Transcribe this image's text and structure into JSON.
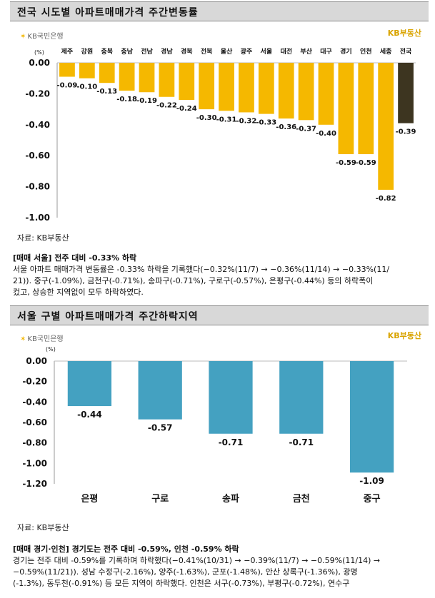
{
  "section1": {
    "title": "전국 시도별 아파트매매가격 주간변동률"
  },
  "logo": {
    "left": "KB국민은행",
    "right": "KB부동산"
  },
  "chart_data": [
    {
      "type": "bar",
      "unit_label": "(%)",
      "categories": [
        "제주",
        "강원",
        "충북",
        "충남",
        "전남",
        "경남",
        "경북",
        "전북",
        "울산",
        "광주",
        "서울",
        "대전",
        "부산",
        "대구",
        "경기",
        "인천",
        "세종",
        "전국"
      ],
      "values": [
        -0.09,
        -0.1,
        -0.13,
        -0.18,
        -0.19,
        -0.22,
        -0.24,
        -0.3,
        -0.31,
        -0.32,
        -0.33,
        -0.36,
        -0.37,
        -0.4,
        -0.59,
        -0.59,
        -0.82,
        -0.39
      ],
      "value_labels": [
        "-0.09",
        "-0.10",
        "-0.13",
        "-0.18",
        "-0.19",
        "-0.22",
        "-0.24",
        "-0.30",
        "-0.31",
        "-0.32",
        "-0.33",
        "-0.36",
        "-0.37",
        "-0.40",
        "-0.59",
        "-0.59",
        "-0.82",
        "-0.39"
      ],
      "y_ticks": [
        "0.00",
        "-0.20",
        "-0.40",
        "-0.60",
        "-0.80",
        "-1.00"
      ],
      "ylim": [
        -1.0,
        0
      ],
      "colors": {
        "bar": "#f5b800",
        "highlight": "#3d3520",
        "highlight_category": "전국"
      },
      "grid": false
    },
    {
      "type": "bar",
      "unit_label": "(%)",
      "categories": [
        "은평",
        "구로",
        "송파",
        "금천",
        "중구"
      ],
      "values": [
        -0.44,
        -0.57,
        -0.71,
        -0.71,
        -1.09
      ],
      "value_labels": [
        "-0.44",
        "-0.57",
        "-0.71",
        "-0.71",
        "-1.09"
      ],
      "y_ticks": [
        "0.00",
        "-0.20",
        "-0.40",
        "-0.60",
        "-0.80",
        "-1.00",
        "-1.20"
      ],
      "ylim": [
        -1.2,
        0
      ],
      "colors": {
        "bar": "#44a1c1"
      },
      "grid": false
    }
  ],
  "source1": "자료: KB부동산",
  "para1": {
    "heading": "[매매 서울] 전주 대비 -0.33% 하락",
    "lines": [
      "서울 아파트 매매가격 변동률은 -0.33% 하락을 기록했다(−0.32%(11/7)  →  −0.36%(11/14)  →  −0.33%(11/",
      "21)). 중구(-1.09%), 금천구(-0.71%), 송파구(-0.71%), 구로구(-0.57%), 은평구(-0.44%) 등의 하락폭이",
      "컸고, 상승한 지역없이 모두 하락하였다."
    ]
  },
  "section2": {
    "title": "서울 구별 아파트매매가격 주간하락지역"
  },
  "source2": "자료: KB부동산",
  "para2": {
    "heading": "[매매 경기·인천] 경기도는 전주 대비 -0.59%, 인천 -0.59% 하락",
    "lines": [
      "경기는 전주 대비 -0.59%를 기록하며 하락했다(−0.41%(10/31)  →  −0.39%(11/7)  →  −0.59%(11/14)  →",
      "−0.59%(11/21)).  성남  수정구(-2.16%),  양주(-1.63%),  군포(-1.48%),  안산  상록구(-1.36%),  광명",
      "(-1.3%),  동두천(-0.91%)  등  모든  지역이  하락했다.  인천은  서구(-0.73%),  부평구(-0.72%),  연수구"
    ]
  }
}
